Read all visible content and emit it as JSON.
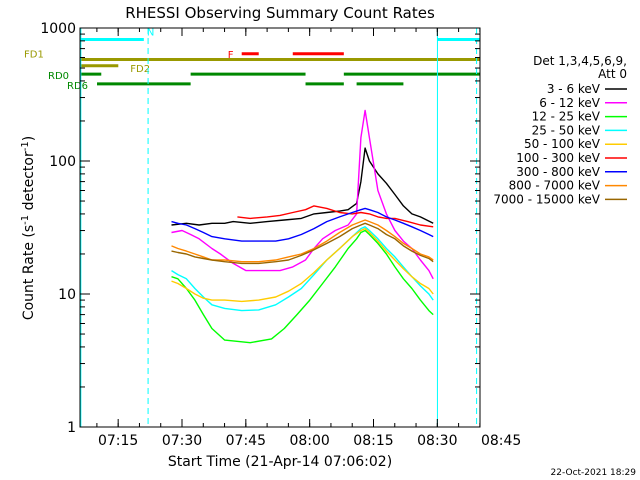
{
  "chart_data": {
    "type": "line",
    "title": "RHESSI Observing Summary Count Rates",
    "xlabel": "Start Time (21-Apr-14 07:06:02)",
    "ylabel_main": "Count Rate (s",
    "ylabel_sup1": "-1",
    "ylabel_mid": " detector",
    "ylabel_sup2": "-1",
    "ylabel_end": ")",
    "y_scale": "log",
    "ylim": [
      1,
      1000
    ],
    "xlim_minutes": [
      0,
      94
    ],
    "x_ticks": [
      {
        "label": "07:15",
        "minute": 8.97
      },
      {
        "label": "07:30",
        "minute": 23.97
      },
      {
        "label": "07:45",
        "minute": 38.97
      },
      {
        "label": "08:00",
        "minute": 53.97
      },
      {
        "label": "08:15",
        "minute": 68.97
      },
      {
        "label": "08:30",
        "minute": 83.97
      },
      {
        "label": "08:45",
        "minute": 98.97
      }
    ],
    "y_ticks": [
      {
        "label": "1",
        "value": 1
      },
      {
        "label": "10",
        "value": 10
      },
      {
        "label": "100",
        "value": 100
      },
      {
        "label": "1000",
        "value": 1000
      }
    ],
    "legend_header": [
      "Det 1,3,4,5,6,9,",
      "Att 0"
    ],
    "series": [
      {
        "name": "3 - 6 keV",
        "color": "#000000",
        "points": [
          [
            21.5,
            33
          ],
          [
            25,
            34
          ],
          [
            28,
            33
          ],
          [
            31,
            34
          ],
          [
            34,
            34
          ],
          [
            36,
            35
          ],
          [
            40,
            34
          ],
          [
            44,
            35
          ],
          [
            48,
            36
          ],
          [
            52,
            37
          ],
          [
            55,
            40
          ],
          [
            58,
            41
          ],
          [
            61,
            42
          ],
          [
            63,
            43
          ],
          [
            65,
            48
          ],
          [
            66,
            70
          ],
          [
            67,
            125
          ],
          [
            68,
            100
          ],
          [
            70,
            80
          ],
          [
            72,
            68
          ],
          [
            74,
            56
          ],
          [
            76,
            46
          ],
          [
            78,
            40
          ],
          [
            80,
            38
          ],
          [
            83,
            34
          ]
        ]
      },
      {
        "name": "6 - 12 keV",
        "color": "#ff00ff",
        "points": [
          [
            21.5,
            29
          ],
          [
            24,
            30
          ],
          [
            26,
            28
          ],
          [
            28,
            26
          ],
          [
            31,
            22
          ],
          [
            33,
            20
          ],
          [
            36,
            17
          ],
          [
            39,
            15
          ],
          [
            43,
            15
          ],
          [
            47,
            15
          ],
          [
            50,
            16
          ],
          [
            53,
            18
          ],
          [
            55,
            22
          ],
          [
            57,
            26
          ],
          [
            60,
            30
          ],
          [
            63,
            33
          ],
          [
            65,
            40
          ],
          [
            66,
            150
          ],
          [
            67,
            240
          ],
          [
            68,
            150
          ],
          [
            70,
            60
          ],
          [
            72,
            40
          ],
          [
            74,
            30
          ],
          [
            76,
            25
          ],
          [
            78,
            22
          ],
          [
            80,
            18
          ],
          [
            82,
            15
          ],
          [
            83,
            13
          ]
        ]
      },
      {
        "name": "12 - 25 keV",
        "color": "#00ff00",
        "points": [
          [
            21.5,
            13.5
          ],
          [
            23,
            13
          ],
          [
            25,
            11
          ],
          [
            27,
            9
          ],
          [
            29,
            7
          ],
          [
            31,
            5.5
          ],
          [
            34,
            4.5
          ],
          [
            40,
            4.3
          ],
          [
            45,
            4.6
          ],
          [
            48,
            5.5
          ],
          [
            51,
            7
          ],
          [
            54,
            9
          ],
          [
            57,
            12
          ],
          [
            60,
            16
          ],
          [
            63,
            22
          ],
          [
            65,
            26
          ],
          [
            66,
            29
          ],
          [
            67,
            30
          ],
          [
            68,
            28
          ],
          [
            70,
            24
          ],
          [
            72,
            20
          ],
          [
            74,
            16
          ],
          [
            76,
            13
          ],
          [
            78,
            11
          ],
          [
            80,
            9
          ],
          [
            82,
            7.5
          ],
          [
            83,
            7
          ]
        ]
      },
      {
        "name": "25 - 50 keV",
        "color": "#00ffff",
        "points": [
          [
            21.5,
            15
          ],
          [
            23,
            14
          ],
          [
            25,
            13
          ],
          [
            27,
            11
          ],
          [
            29,
            9.5
          ],
          [
            31,
            8.3
          ],
          [
            34,
            7.8
          ],
          [
            38,
            7.5
          ],
          [
            42,
            7.6
          ],
          [
            46,
            8.3
          ],
          [
            49,
            9.5
          ],
          [
            52,
            11
          ],
          [
            55,
            14
          ],
          [
            58,
            18
          ],
          [
            61,
            22
          ],
          [
            64,
            27
          ],
          [
            66,
            31
          ],
          [
            67,
            32
          ],
          [
            68,
            30
          ],
          [
            70,
            26
          ],
          [
            72,
            22
          ],
          [
            74,
            19
          ],
          [
            76,
            16
          ],
          [
            78,
            13.5
          ],
          [
            80,
            11.5
          ],
          [
            82,
            10
          ],
          [
            83,
            9
          ]
        ]
      },
      {
        "name": "50 - 100 keV",
        "color": "#ffcc00",
        "points": [
          [
            21.5,
            12.5
          ],
          [
            23,
            12
          ],
          [
            25,
            11
          ],
          [
            27,
            10
          ],
          [
            29,
            9.3
          ],
          [
            31,
            9
          ],
          [
            34,
            9
          ],
          [
            38,
            8.8
          ],
          [
            42,
            9
          ],
          [
            46,
            9.5
          ],
          [
            49,
            10.5
          ],
          [
            52,
            12
          ],
          [
            55,
            14.5
          ],
          [
            58,
            18
          ],
          [
            61,
            22
          ],
          [
            64,
            27
          ],
          [
            66,
            30
          ],
          [
            67,
            31
          ],
          [
            68,
            29
          ],
          [
            70,
            25
          ],
          [
            72,
            21
          ],
          [
            74,
            18
          ],
          [
            76,
            15.5
          ],
          [
            78,
            13.5
          ],
          [
            80,
            12
          ],
          [
            82,
            11
          ],
          [
            83,
            10
          ]
        ]
      },
      {
        "name": "100 - 300 keV",
        "color": "#ff0000",
        "points": [
          [
            37,
            38
          ],
          [
            40,
            37
          ],
          [
            44,
            38
          ],
          [
            47,
            39
          ],
          [
            50,
            41
          ],
          [
            53,
            43
          ],
          [
            55,
            46
          ],
          [
            58,
            44
          ],
          [
            61,
            41
          ],
          [
            64,
            40
          ],
          [
            66,
            41
          ],
          [
            68,
            40
          ],
          [
            70,
            38
          ],
          [
            72,
            37
          ],
          [
            74,
            37
          ],
          [
            77,
            35
          ],
          [
            80,
            33
          ],
          [
            83,
            32
          ]
        ]
      },
      {
        "name": "300 - 800 keV",
        "color": "#0000ff",
        "points": [
          [
            21.5,
            35
          ],
          [
            23,
            34
          ],
          [
            25,
            33
          ],
          [
            27,
            31
          ],
          [
            29,
            29
          ],
          [
            31,
            27
          ],
          [
            34,
            26
          ],
          [
            38,
            25
          ],
          [
            42,
            25
          ],
          [
            46,
            25
          ],
          [
            49,
            26
          ],
          [
            52,
            28
          ],
          [
            55,
            31
          ],
          [
            58,
            35
          ],
          [
            61,
            38
          ],
          [
            64,
            41
          ],
          [
            66,
            43
          ],
          [
            67,
            44
          ],
          [
            68,
            43
          ],
          [
            70,
            41
          ],
          [
            72,
            38
          ],
          [
            74,
            36
          ],
          [
            76,
            34
          ],
          [
            78,
            32
          ],
          [
            80,
            30
          ],
          [
            82,
            28
          ],
          [
            83,
            27
          ]
        ]
      },
      {
        "name": "800 - 7000 keV",
        "color": "#ff8800",
        "points": [
          [
            21.5,
            23
          ],
          [
            23,
            22
          ],
          [
            25,
            21
          ],
          [
            27,
            20
          ],
          [
            29,
            19
          ],
          [
            31,
            18
          ],
          [
            34,
            18
          ],
          [
            38,
            17.5
          ],
          [
            42,
            17.5
          ],
          [
            46,
            18
          ],
          [
            49,
            19
          ],
          [
            52,
            20
          ],
          [
            55,
            22
          ],
          [
            58,
            25
          ],
          [
            61,
            29
          ],
          [
            64,
            33
          ],
          [
            66,
            35
          ],
          [
            67,
            36
          ],
          [
            68,
            35
          ],
          [
            70,
            33
          ],
          [
            72,
            30
          ],
          [
            74,
            27
          ],
          [
            76,
            24
          ],
          [
            78,
            22
          ],
          [
            80,
            20
          ],
          [
            82,
            19
          ],
          [
            83,
            18
          ]
        ]
      },
      {
        "name": "7000 - 15000 keV",
        "color": "#996600",
        "points": [
          [
            21.5,
            21
          ],
          [
            23,
            20.5
          ],
          [
            25,
            20
          ],
          [
            27,
            19
          ],
          [
            29,
            18.5
          ],
          [
            31,
            18
          ],
          [
            34,
            17.5
          ],
          [
            38,
            17
          ],
          [
            42,
            17
          ],
          [
            46,
            17.5
          ],
          [
            49,
            18
          ],
          [
            52,
            19.5
          ],
          [
            55,
            21.5
          ],
          [
            58,
            24
          ],
          [
            61,
            27
          ],
          [
            64,
            31
          ],
          [
            66,
            33
          ],
          [
            67,
            34
          ],
          [
            68,
            33
          ],
          [
            70,
            31
          ],
          [
            72,
            28
          ],
          [
            74,
            26
          ],
          [
            76,
            23
          ],
          [
            78,
            21
          ],
          [
            80,
            19.5
          ],
          [
            82,
            18.5
          ],
          [
            83,
            17.5
          ]
        ]
      }
    ],
    "flag_bars": [
      {
        "label": "N",
        "color": "#00ffff",
        "level_value": 820,
        "segments": [
          [
            0,
            15
          ],
          [
            84,
            94
          ]
        ]
      },
      {
        "label": "F",
        "color": "#ff0000",
        "level_value": 640,
        "segments": [
          [
            38,
            42
          ],
          [
            50,
            62
          ]
        ]
      },
      {
        "label": "FD1",
        "color": "#999900",
        "level_value": 580,
        "segments": [
          [
            0,
            94
          ]
        ]
      },
      {
        "label": "FD2",
        "color": "#999900",
        "level_value": 520,
        "segments": [
          [
            0,
            9
          ]
        ]
      },
      {
        "label": "RD0",
        "color": "#008800",
        "level_value": 450,
        "segments": [
          [
            0,
            5
          ],
          [
            26,
            53
          ],
          [
            62,
            94
          ]
        ]
      },
      {
        "label": "RD6",
        "color": "#008800",
        "level_value": 380,
        "segments": [
          [
            4,
            26
          ],
          [
            53,
            62
          ],
          [
            65,
            76
          ]
        ]
      }
    ],
    "vertical_markers": [
      {
        "minute": 0.2,
        "style": "solid",
        "color": "#00ffff"
      },
      {
        "minute": 16.0,
        "style": "dashed",
        "color": "#00ffff"
      },
      {
        "minute": 84.0,
        "style": "solid",
        "color": "#00ffff"
      },
      {
        "minute": 93.2,
        "style": "dashed",
        "color": "#00ffff"
      }
    ],
    "footer_date": "22-Oct-2021 18:29"
  }
}
